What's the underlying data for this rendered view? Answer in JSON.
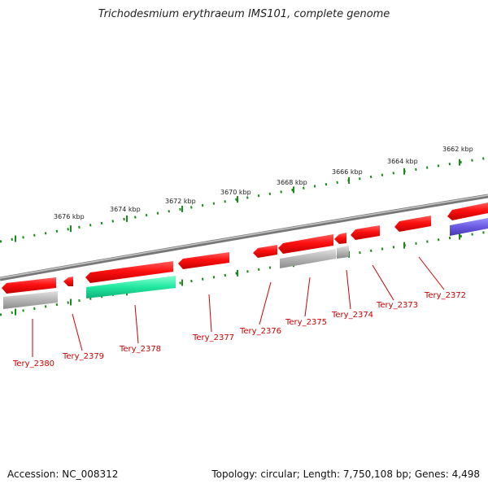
{
  "title": "Trichodesmium erythraeum IMS101, complete genome",
  "kbp_labels": [
    "3662 kbp",
    "3664 kbp",
    "3666 kbp",
    "3668 kbp",
    "3670 kbp",
    "3672 kbp",
    "3674 kbp",
    "3676 kbp"
  ],
  "genes": [
    "Tery_2372",
    "Tery_2373",
    "Tery_2374",
    "Tery_2375",
    "Tery_2376",
    "Tery_2377",
    "Tery_2378",
    "Tery_2379",
    "Tery_2380"
  ],
  "accession": "Accession: NC_008312",
  "topology": "Topology: circular; Length: 7,750,108 bp; Genes: 4,498",
  "colors": {
    "cds": "#ff1a1a",
    "rna": "#b0b0b0",
    "aux1": "#1fe8a0",
    "aux2": "#6655dd",
    "tick": "#1a8a1a",
    "backbone": "#888888",
    "label": "#cc0000"
  }
}
